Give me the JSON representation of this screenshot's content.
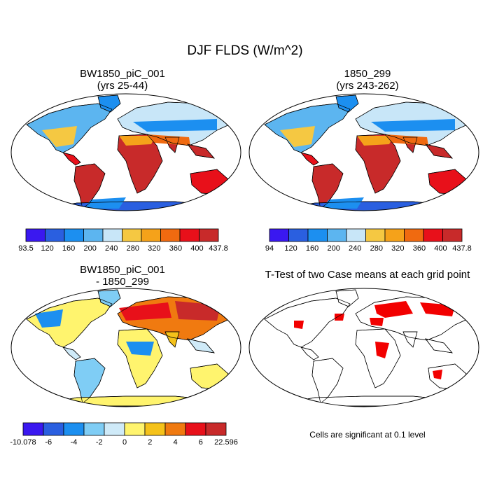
{
  "figure": {
    "title": "DJF FLDS (W/m^2)"
  },
  "panels": [
    {
      "id": "case1",
      "title_line1": "BW1850_piC_001",
      "title_line2": "(yrs 25-44)",
      "colorbar_labels": [
        "93.5",
        "120",
        "160",
        "200",
        "240",
        "280",
        "320",
        "360",
        "400",
        "437.8"
      ]
    },
    {
      "id": "case2",
      "title_line1": "1850_299",
      "title_line2": "(yrs 243-262)",
      "colorbar_labels": [
        "94",
        "120",
        "160",
        "200",
        "240",
        "280",
        "320",
        "360",
        "400",
        "437.8"
      ]
    },
    {
      "id": "diff",
      "title_line1": "BW1850_piC_001",
      "title_line2": "- 1850_299",
      "colorbar_labels": [
        "-10.078",
        "-6",
        "-4",
        "-2",
        "0",
        "2",
        "4",
        "6",
        "22.596"
      ]
    },
    {
      "id": "ttest",
      "title_line1": "T-Test of two Case means at each grid point",
      "note": "Cells are significant at 0.1 level"
    }
  ],
  "colors": {
    "flux": [
      "#3a18f0",
      "#2a5fe0",
      "#1c8ff0",
      "#5cb5f0",
      "#c8e6f8",
      "#f5c842",
      "#f5a21a",
      "#f06a10",
      "#e8101a",
      "#c82a2a"
    ],
    "diff": [
      "#3a18f0",
      "#2a5fe0",
      "#1c8ff0",
      "#7fcdf5",
      "#cfeaf8",
      "#fff46e",
      "#f5c21a",
      "#f07a10",
      "#e8101a",
      "#c82a2a"
    ],
    "significant": "#f20000"
  }
}
